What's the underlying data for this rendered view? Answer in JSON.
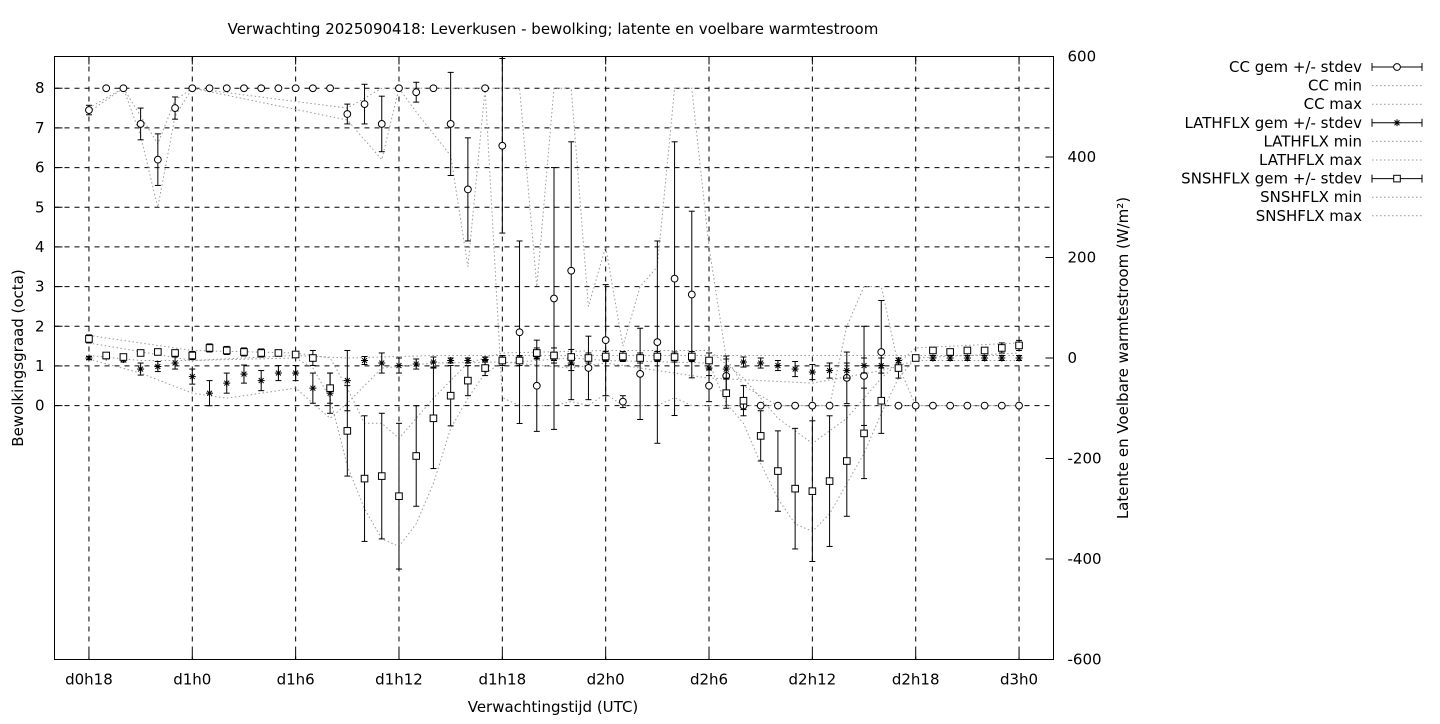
{
  "chart_data": {
    "type": "scatter",
    "title": "Verwachting 2025090418: Leverkusen - bewolking; latente en voelbare warmtestroom",
    "xlabel": "Verwachtingstijd (UTC)",
    "ylabel": "Bewolkingsgraad (octa)",
    "y2label": "Latente en Voelbare warmtestroom (W/m²)",
    "x_unit": "hours since d0h18",
    "xlim": [
      -2,
      56
    ],
    "x_ticks": [
      {
        "x": 0,
        "label": "d0h18"
      },
      {
        "x": 6,
        "label": "d1h0"
      },
      {
        "x": 12,
        "label": "d1h6"
      },
      {
        "x": 18,
        "label": "d1h12"
      },
      {
        "x": 24,
        "label": "d1h18"
      },
      {
        "x": 30,
        "label": "d2h0"
      },
      {
        "x": 36,
        "label": "d2h6"
      },
      {
        "x": 42,
        "label": "d2h12"
      },
      {
        "x": 48,
        "label": "d2h18"
      },
      {
        "x": 54,
        "label": "d3h0"
      }
    ],
    "ylim": [
      -6.4,
      8.8
    ],
    "y_ticks": [
      0,
      1,
      2,
      3,
      4,
      5,
      6,
      7,
      8
    ],
    "y2lim": [
      -600,
      600
    ],
    "y2_ticks": [
      -600,
      -400,
      -200,
      0,
      200,
      400,
      600
    ],
    "grid": true,
    "legend_position": "outside-right",
    "series": [
      {
        "name": "CC gem +/- stdev",
        "axis": "left",
        "marker": "circle",
        "x": [
          0,
          1,
          2,
          3,
          4,
          5,
          6,
          7,
          8,
          9,
          10,
          11,
          12,
          13,
          14,
          15,
          16,
          17,
          18,
          19,
          20,
          21,
          22,
          23,
          24,
          25,
          26,
          27,
          28,
          29,
          30,
          31,
          32,
          33,
          34,
          35,
          36,
          37,
          38,
          39,
          40,
          41,
          42,
          43,
          44,
          45,
          46,
          47,
          48,
          49,
          50,
          51,
          52,
          53,
          54
        ],
        "values": [
          7.45,
          8,
          8,
          7.1,
          6.2,
          7.5,
          8,
          8,
          8,
          8,
          8,
          8,
          8,
          8,
          8,
          7.35,
          7.6,
          7.1,
          8,
          7.9,
          8,
          7.1,
          5.45,
          8,
          6.55,
          1.85,
          0.5,
          2.7,
          3.4,
          0.95,
          1.65,
          0.1,
          0.8,
          1.6,
          3.2,
          2.8,
          0.5,
          0.75,
          0,
          0,
          0,
          0,
          0,
          0,
          0.7,
          0.75,
          1.35,
          0,
          0,
          0,
          0,
          0,
          0,
          0,
          0
        ],
        "errors": [
          0.12,
          0,
          0,
          0.4,
          0.65,
          0.28,
          0,
          0,
          0,
          0,
          0,
          0,
          0,
          0,
          0,
          0.25,
          0.5,
          0.7,
          0,
          0.25,
          0,
          1.3,
          1.3,
          0,
          2.2,
          2.3,
          1.15,
          3.3,
          3.25,
          0.8,
          1.4,
          0.15,
          1.15,
          2.55,
          3.45,
          2.1,
          0.4,
          0.5,
          0.1,
          0,
          0,
          0,
          0,
          0,
          0.65,
          1.25,
          1.3,
          0,
          0,
          0,
          0,
          0,
          0,
          0,
          0
        ]
      },
      {
        "name": "CC min",
        "axis": "left",
        "style": "dotted",
        "x": [
          0,
          2,
          3,
          4,
          5,
          6,
          15,
          17,
          18,
          19,
          21,
          22,
          23,
          24,
          25,
          26,
          27,
          28,
          29,
          30,
          31,
          33,
          34,
          35,
          36,
          37,
          38,
          40,
          44,
          45,
          46,
          47,
          48,
          54
        ],
        "values": [
          7.4,
          8,
          6.8,
          5,
          7.3,
          8,
          7.2,
          6.2,
          8,
          7.4,
          6.3,
          3.5,
          8,
          0.2,
          0,
          0,
          0,
          0.1,
          0,
          0.3,
          0,
          0,
          0.2,
          0,
          0,
          0,
          0,
          0,
          0,
          0,
          0,
          0,
          0,
          0
        ]
      },
      {
        "name": "CC max",
        "axis": "left",
        "style": "dotted",
        "x": [
          0,
          2,
          3,
          4,
          5,
          6,
          15,
          17,
          18,
          19,
          21,
          22,
          23,
          24,
          25,
          26,
          27,
          28,
          29,
          30,
          31,
          32,
          33,
          34,
          35,
          36,
          37,
          38,
          40,
          43,
          44,
          45,
          46,
          47,
          48,
          54
        ],
        "values": [
          7.5,
          8,
          7.3,
          6.6,
          7.7,
          8,
          7.5,
          8,
          8,
          8,
          8,
          8,
          8,
          8,
          8,
          3,
          8,
          8,
          2.5,
          4,
          1.5,
          3,
          3.5,
          8,
          8,
          4,
          1.2,
          0.5,
          0,
          0,
          2,
          3,
          3,
          1,
          0,
          0
        ]
      },
      {
        "name": "LATHFLX gem +/- stdev",
        "axis": "right",
        "marker": "star",
        "x": [
          0,
          1,
          2,
          3,
          4,
          5,
          6,
          7,
          8,
          9,
          10,
          11,
          12,
          13,
          14,
          15,
          16,
          17,
          18,
          19,
          20,
          21,
          22,
          23,
          24,
          25,
          26,
          27,
          28,
          29,
          30,
          31,
          32,
          33,
          34,
          35,
          36,
          37,
          38,
          39,
          40,
          41,
          42,
          43,
          44,
          45,
          46,
          47,
          48,
          49,
          50,
          51,
          52,
          53,
          54
        ],
        "values": [
          0,
          2,
          -3,
          -22,
          -17,
          -10,
          -37,
          -70,
          -50,
          -32,
          -45,
          -30,
          -30,
          -60,
          -70,
          -45,
          -5,
          -10,
          -15,
          -12,
          -8,
          -5,
          -5,
          -3,
          -3,
          0,
          3,
          0,
          -10,
          0,
          0,
          0,
          0,
          0,
          0,
          0,
          -20,
          -22,
          -8,
          -10,
          -15,
          -22,
          -28,
          -25,
          -25,
          -15,
          -15,
          -5,
          0,
          0,
          0,
          0,
          0,
          0,
          0
        ],
        "errors": [
          3,
          3,
          5,
          12,
          10,
          12,
          15,
          25,
          20,
          18,
          20,
          15,
          15,
          30,
          40,
          60,
          8,
          20,
          15,
          10,
          10,
          5,
          5,
          5,
          5,
          5,
          5,
          5,
          15,
          5,
          5,
          5,
          5,
          5,
          5,
          5,
          15,
          20,
          10,
          10,
          10,
          15,
          15,
          15,
          15,
          15,
          15,
          5,
          5,
          5,
          5,
          5,
          5,
          5,
          5
        ]
      },
      {
        "name": "LATHFLX min",
        "axis": "right",
        "style": "dotted",
        "x": [
          0,
          3,
          6,
          8,
          12,
          14,
          15,
          17,
          20,
          24,
          28,
          30,
          36,
          42,
          46,
          48,
          54
        ],
        "values": [
          -2,
          -30,
          -70,
          -80,
          -60,
          -120,
          -90,
          -20,
          -10,
          -8,
          -20,
          -10,
          -40,
          -50,
          -25,
          -5,
          -5
        ]
      },
      {
        "name": "LATHFLX max",
        "axis": "right",
        "style": "dotted",
        "x": [
          0,
          3,
          6,
          12,
          15,
          20,
          24,
          30,
          36,
          42,
          48,
          54
        ],
        "values": [
          5,
          -5,
          -5,
          5,
          0,
          5,
          5,
          5,
          5,
          5,
          5,
          5
        ]
      },
      {
        "name": "SNSHFLX gem +/- stdev",
        "axis": "right",
        "marker": "square",
        "x": [
          0,
          1,
          2,
          3,
          4,
          5,
          6,
          7,
          8,
          9,
          10,
          11,
          12,
          13,
          14,
          15,
          16,
          17,
          18,
          19,
          20,
          21,
          22,
          23,
          24,
          25,
          26,
          27,
          28,
          29,
          30,
          31,
          32,
          33,
          34,
          35,
          36,
          37,
          38,
          39,
          40,
          41,
          42,
          43,
          44,
          45,
          46,
          47,
          48,
          49,
          50,
          51,
          52,
          53,
          54
        ],
        "values": [
          38,
          5,
          2,
          10,
          12,
          10,
          5,
          20,
          15,
          12,
          10,
          10,
          7,
          0,
          -60,
          -145,
          -240,
          -235,
          -275,
          -195,
          -120,
          -75,
          -45,
          -20,
          -5,
          -5,
          10,
          5,
          2,
          0,
          3,
          3,
          0,
          3,
          2,
          3,
          -5,
          -70,
          -85,
          -155,
          -225,
          -260,
          -265,
          -245,
          -205,
          -150,
          -85,
          -20,
          0,
          15,
          12,
          15,
          15,
          20,
          25
        ],
        "errors": [
          8,
          5,
          5,
          5,
          5,
          5,
          8,
          8,
          8,
          8,
          8,
          5,
          5,
          15,
          30,
          90,
          125,
          125,
          145,
          100,
          100,
          60,
          30,
          15,
          10,
          10,
          10,
          15,
          15,
          10,
          10,
          10,
          10,
          10,
          10,
          10,
          15,
          30,
          30,
          50,
          80,
          120,
          140,
          130,
          110,
          90,
          65,
          20,
          5,
          5,
          5,
          5,
          5,
          10,
          10
        ]
      },
      {
        "name": "SNSHFLX min",
        "axis": "right",
        "style": "dotted",
        "x": [
          0,
          6,
          12,
          13,
          14,
          15,
          16,
          17,
          18,
          19,
          20,
          21,
          22,
          23,
          24,
          28,
          30,
          36,
          37,
          38,
          39,
          40,
          41,
          42,
          43,
          44,
          45,
          46,
          47,
          48,
          54
        ],
        "values": [
          30,
          -5,
          0,
          -20,
          -80,
          -215,
          -300,
          -360,
          -375,
          -330,
          -250,
          -140,
          -80,
          -30,
          -10,
          0,
          -5,
          -10,
          -90,
          -130,
          -210,
          -280,
          -330,
          -345,
          -310,
          -250,
          -190,
          -110,
          -40,
          0,
          10
        ]
      },
      {
        "name": "SNSHFLX max",
        "axis": "right",
        "style": "dotted",
        "x": [
          0,
          6,
          12,
          14,
          15,
          16,
          17,
          18,
          20,
          22,
          24,
          30,
          36,
          38,
          40,
          42,
          44,
          46,
          48,
          54
        ],
        "values": [
          45,
          15,
          10,
          0,
          -60,
          -130,
          -130,
          -160,
          -80,
          -10,
          10,
          15,
          15,
          -40,
          -120,
          -170,
          -120,
          -40,
          20,
          30
        ]
      }
    ]
  }
}
